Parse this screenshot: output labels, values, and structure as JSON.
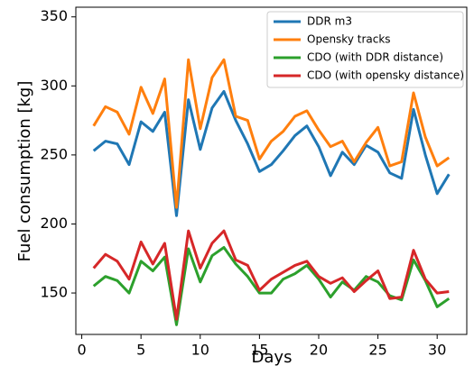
{
  "chart_data": {
    "type": "line",
    "xlabel": "Days",
    "ylabel": "Fuel consumption [kg]",
    "xlim": [
      -0.5,
      32.5
    ],
    "ylim": [
      120,
      357
    ],
    "xticks": [
      0,
      5,
      10,
      15,
      20,
      25,
      30
    ],
    "yticks": [
      150,
      200,
      250,
      300,
      350
    ],
    "grid": false,
    "legend_position": "top-right",
    "x": [
      1,
      2,
      3,
      4,
      5,
      6,
      7,
      8,
      9,
      10,
      11,
      12,
      13,
      14,
      15,
      16,
      17,
      18,
      19,
      20,
      21,
      22,
      23,
      24,
      25,
      26,
      27,
      28,
      29,
      30,
      31
    ],
    "series": [
      {
        "name": "DDR m3",
        "color": "#1f77b4",
        "values": [
          253,
          260,
          258,
          243,
          274,
          267,
          281,
          206,
          290,
          254,
          284,
          296,
          275,
          258,
          238,
          243,
          253,
          264,
          271,
          256,
          235,
          252,
          243,
          257,
          252,
          237,
          233,
          283,
          250,
          222,
          236
        ]
      },
      {
        "name": "Opensky tracks",
        "color": "#ff7f0e",
        "values": [
          271,
          285,
          281,
          265,
          299,
          280,
          305,
          212,
          319,
          269,
          306,
          319,
          278,
          275,
          247,
          260,
          267,
          278,
          282,
          268,
          256,
          260,
          245,
          259,
          270,
          242,
          245,
          295,
          263,
          242,
          248
        ]
      },
      {
        "name": "CDO (with DDR distance)",
        "color": "#2ca02c",
        "values": [
          155,
          162,
          159,
          150,
          173,
          166,
          176,
          127,
          182,
          158,
          177,
          183,
          171,
          162,
          150,
          150,
          160,
          164,
          170,
          160,
          147,
          158,
          152,
          162,
          158,
          148,
          145,
          174,
          159,
          140,
          146
        ]
      },
      {
        "name": "CDO (with opensky distance)",
        "color": "#d62728",
        "values": [
          168,
          178,
          173,
          160,
          187,
          171,
          186,
          131,
          195,
          168,
          186,
          195,
          174,
          170,
          152,
          160,
          165,
          170,
          173,
          162,
          157,
          161,
          151,
          159,
          166,
          146,
          147,
          181,
          160,
          150,
          151
        ]
      }
    ]
  }
}
